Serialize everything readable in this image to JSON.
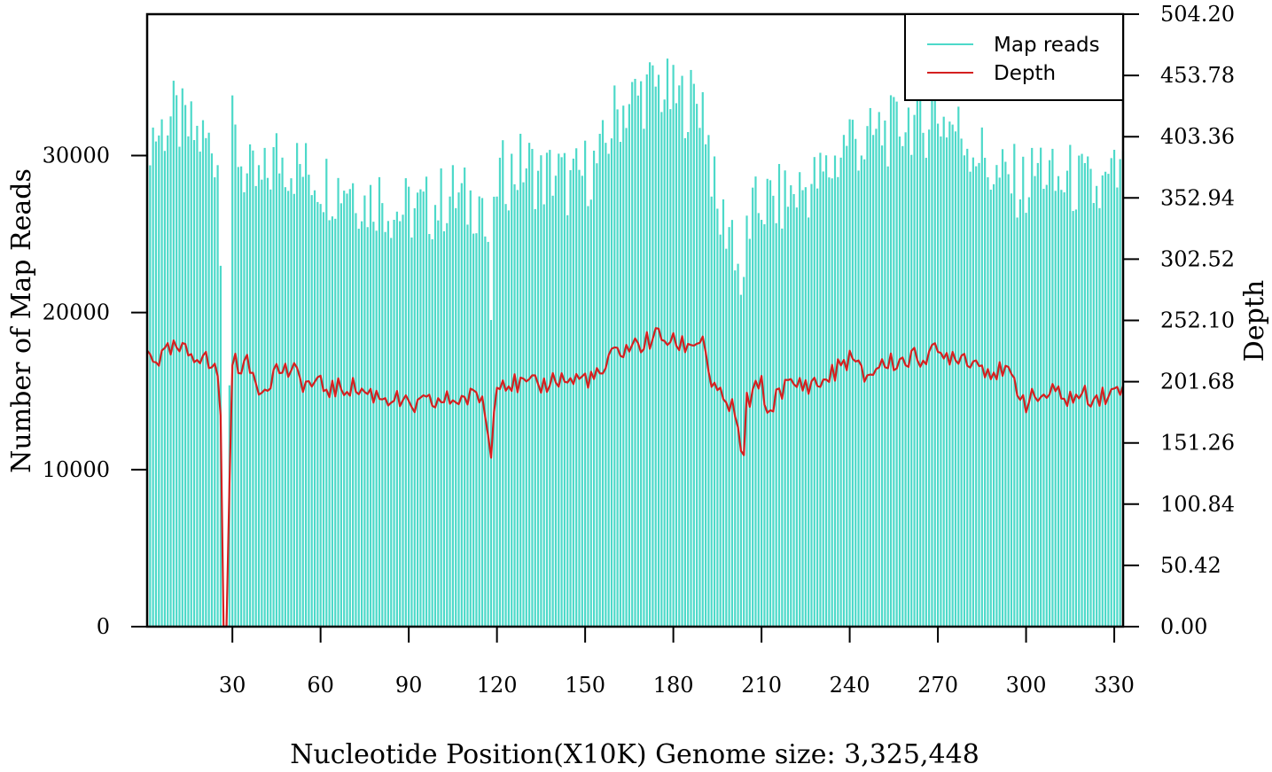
{
  "chart_data": {
    "type": "bar",
    "xlabel": "Nucleotide Position(X10K) Genome size: 3,325,448",
    "ylabel": "Number of Map Reads",
    "y2label": "Depth",
    "xlim": [
      1,
      333
    ],
    "ylim": [
      0,
      39000
    ],
    "y2lim": [
      0,
      504.2
    ],
    "x_ticks": [
      30,
      60,
      90,
      120,
      150,
      180,
      210,
      240,
      270,
      300,
      330
    ],
    "y_ticks": [
      0,
      10000,
      20000,
      30000
    ],
    "y2_ticks": [
      "0.00",
      "50.42",
      "100.84",
      "151.26",
      "201.68",
      "252.10",
      "302.52",
      "352.94",
      "403.36",
      "453.78",
      "504.20"
    ],
    "grid": false,
    "legend_position": "top-right",
    "series": [
      {
        "name": "Map reads",
        "color": "#4dd9c9",
        "style": "bars",
        "x": [
          5,
          10,
          15,
          20,
          25,
          26,
          27,
          28,
          30,
          35,
          40,
          45,
          50,
          55,
          60,
          65,
          70,
          75,
          80,
          85,
          90,
          95,
          100,
          105,
          110,
          115,
          118,
          119,
          120,
          125,
          130,
          135,
          140,
          145,
          150,
          155,
          160,
          165,
          170,
          175,
          180,
          185,
          190,
          192,
          195,
          200,
          204,
          205,
          210,
          215,
          220,
          225,
          230,
          235,
          240,
          245,
          250,
          255,
          260,
          265,
          268,
          270,
          275,
          280,
          285,
          290,
          295,
          300,
          305,
          310,
          315,
          320,
          325,
          330,
          333
        ],
        "values": [
          31500,
          32500,
          31500,
          31000,
          30200,
          23000,
          0,
          0,
          31500,
          28500,
          28000,
          30000,
          29500,
          29000,
          28500,
          28000,
          28500,
          27000,
          27500,
          26500,
          26500,
          26500,
          27000,
          27500,
          27000,
          27500,
          20000,
          25000,
          28500,
          29000,
          29500,
          28500,
          29000,
          28000,
          29000,
          29500,
          32500,
          33500,
          34000,
          34500,
          33500,
          33500,
          33500,
          31000,
          26000,
          25500,
          20500,
          25500,
          27000,
          27000,
          27500,
          28000,
          28500,
          29500,
          31500,
          30500,
          31500,
          31500,
          32500,
          31500,
          33500,
          32500,
          32000,
          31000,
          30000,
          28500,
          28500,
          28000,
          29500,
          28000,
          28500,
          28000,
          27500,
          28500,
          28500
        ]
      },
      {
        "name": "Depth",
        "color": "#d42020",
        "style": "line",
        "x": [
          1,
          5,
          10,
          15,
          20,
          22,
          25,
          26,
          27,
          28,
          30,
          35,
          40,
          45,
          50,
          55,
          60,
          65,
          70,
          75,
          80,
          85,
          90,
          95,
          100,
          105,
          110,
          115,
          118,
          119,
          120,
          125,
          130,
          135,
          140,
          145,
          150,
          155,
          160,
          165,
          170,
          175,
          180,
          185,
          190,
          193,
          195,
          200,
          204,
          205,
          210,
          213,
          215,
          220,
          225,
          230,
          235,
          240,
          245,
          250,
          255,
          260,
          265,
          268,
          270,
          275,
          280,
          285,
          290,
          295,
          300,
          305,
          310,
          315,
          320,
          325,
          330,
          333
        ],
        "values": [
          226,
          220,
          228,
          225,
          224,
          215,
          210,
          175,
          0,
          0,
          218,
          215,
          195,
          212,
          210,
          200,
          198,
          195,
          198,
          193,
          190,
          188,
          180,
          183,
          185,
          187,
          188,
          190,
          140,
          185,
          205,
          200,
          198,
          198,
          205,
          202,
          205,
          205,
          225,
          230,
          233,
          240,
          233,
          232,
          238,
          200,
          190,
          180,
          138,
          185,
          200,
          170,
          195,
          198,
          200,
          200,
          210,
          222,
          205,
          215,
          218,
          220,
          222,
          230,
          220,
          225,
          222,
          215,
          210,
          205,
          185,
          190,
          192,
          188,
          190,
          190,
          192,
          198
        ]
      }
    ]
  }
}
